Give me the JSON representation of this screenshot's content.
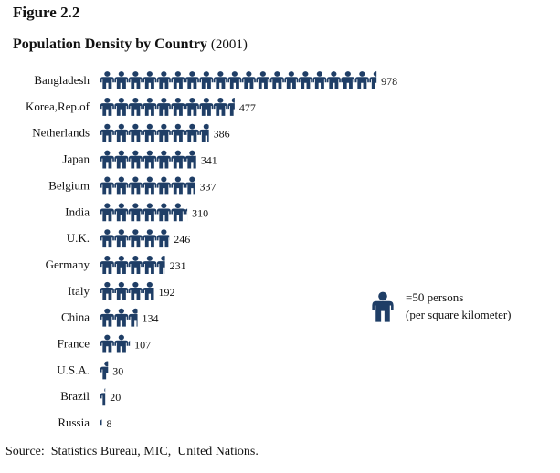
{
  "figure_label": "Figure 2.2",
  "title_main": "Population Density by Country",
  "title_year": "(2001)",
  "legend": {
    "unit_value": 50,
    "line1": "=50 persons",
    "line2": "(per square kilometer)"
  },
  "source": "Source:  Statistics Bureau, MIC,  United Nations.",
  "colors": {
    "icon": "#1f3e66",
    "text": "#111111"
  },
  "chart_data": {
    "type": "bar",
    "style": "pictogram",
    "title": "Population Density by Country (2001)",
    "unit_per_icon": 50,
    "categories": [
      "Bangladesh",
      "Korea,Rep.of",
      "Netherlands",
      "Japan",
      "Belgium",
      "India",
      "U.K.",
      "Germany",
      "Italy",
      "China",
      "France",
      "U.S.A.",
      "Brazil",
      "Russia"
    ],
    "values": [
      978,
      477,
      386,
      341,
      337,
      310,
      246,
      231,
      192,
      134,
      107,
      30,
      20,
      8
    ],
    "value_labels": [
      "978",
      "477",
      "386",
      "341",
      "337",
      "310",
      "246",
      "231",
      "192",
      "134",
      "107",
      "30",
      "20",
      "8"
    ]
  }
}
